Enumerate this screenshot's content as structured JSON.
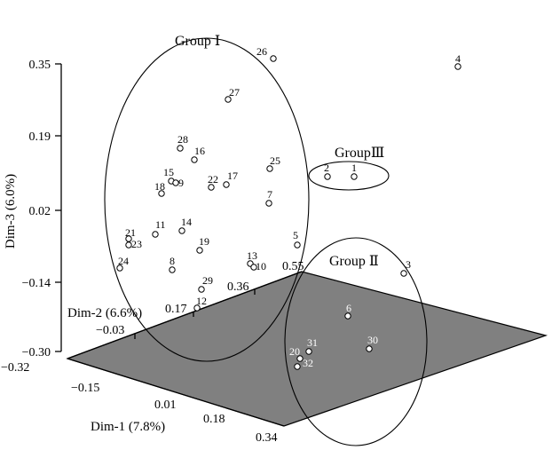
{
  "chart_data": {
    "type": "scatter",
    "projection": "3d",
    "axes": {
      "x": {
        "label": "Dim-1 (7.8%)",
        "ticks": [
          "−0.32",
          "−0.15",
          "0.01",
          "0.18",
          "0.34"
        ]
      },
      "y": {
        "label": "Dim-2 (6.6%)",
        "ticks": [
          "−0.03",
          "0.17",
          "0.36",
          "0.55"
        ]
      },
      "z": {
        "label": "Dim-3 (6.0%)",
        "ticks": [
          "0.35",
          "0.19",
          "0.02",
          "−0.14",
          "−0.30"
        ]
      }
    },
    "groups": [
      {
        "name": "Group Ⅰ",
        "members": [
          "26",
          "27",
          "28",
          "16",
          "15",
          "9",
          "18",
          "22",
          "17",
          "25",
          "7",
          "21",
          "23",
          "11",
          "14",
          "19",
          "24",
          "8",
          "13",
          "10",
          "5",
          "29",
          "12"
        ]
      },
      {
        "name": "GroupⅢ",
        "members": [
          "2",
          "1"
        ]
      },
      {
        "name": "Group Ⅱ",
        "members": [
          "3",
          "6",
          "30",
          "31",
          "20",
          "32"
        ]
      }
    ],
    "points": [
      {
        "label": "4"
      },
      {
        "label": "26"
      },
      {
        "label": "27"
      },
      {
        "label": "28"
      },
      {
        "label": "16"
      },
      {
        "label": "15"
      },
      {
        "label": "9"
      },
      {
        "label": "18"
      },
      {
        "label": "22"
      },
      {
        "label": "17"
      },
      {
        "label": "25"
      },
      {
        "label": "7"
      },
      {
        "label": "2"
      },
      {
        "label": "1"
      },
      {
        "label": "21"
      },
      {
        "label": "23"
      },
      {
        "label": "11"
      },
      {
        "label": "14"
      },
      {
        "label": "19"
      },
      {
        "label": "24"
      },
      {
        "label": "8"
      },
      {
        "label": "5"
      },
      {
        "label": "13"
      },
      {
        "label": "10"
      },
      {
        "label": "29"
      },
      {
        "label": "12"
      },
      {
        "label": "3"
      },
      {
        "label": "6"
      },
      {
        "label": "30"
      },
      {
        "label": "31"
      },
      {
        "label": "20"
      },
      {
        "label": "32"
      }
    ]
  }
}
